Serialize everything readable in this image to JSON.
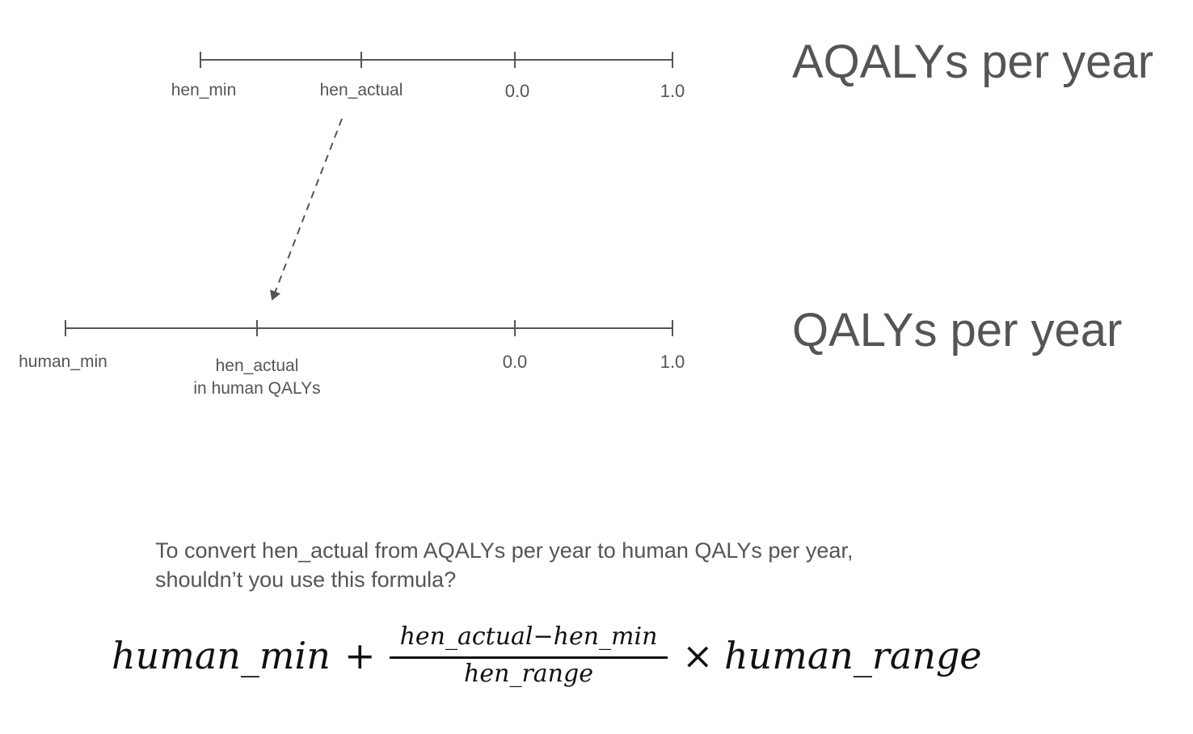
{
  "top_scale": {
    "title": "AQALYs per year",
    "ticks": [
      {
        "label": "hen_min"
      },
      {
        "label": "hen_actual"
      },
      {
        "label": "0.0"
      },
      {
        "label": "1.0"
      }
    ]
  },
  "bottom_scale": {
    "title": "QALYs per year",
    "ticks": [
      {
        "label": "human_min"
      },
      {
        "label_line1": "hen_actual",
        "label_line2": "in human QALYs"
      },
      {
        "label": "0.0"
      },
      {
        "label": "1.0"
      }
    ]
  },
  "question": {
    "line1": "To convert hen_actual from AQALYs per year to human QALYs per year,",
    "line2": "shouldn’t you use this formula?"
  },
  "formula": {
    "lhs": "human_min",
    "plus": "+",
    "numerator": "hen_actual−hen_min",
    "denominator": "hen_range",
    "times": "×",
    "rhs": "human_range"
  },
  "colors": {
    "ink": "#555555",
    "formula_ink": "#111111"
  }
}
